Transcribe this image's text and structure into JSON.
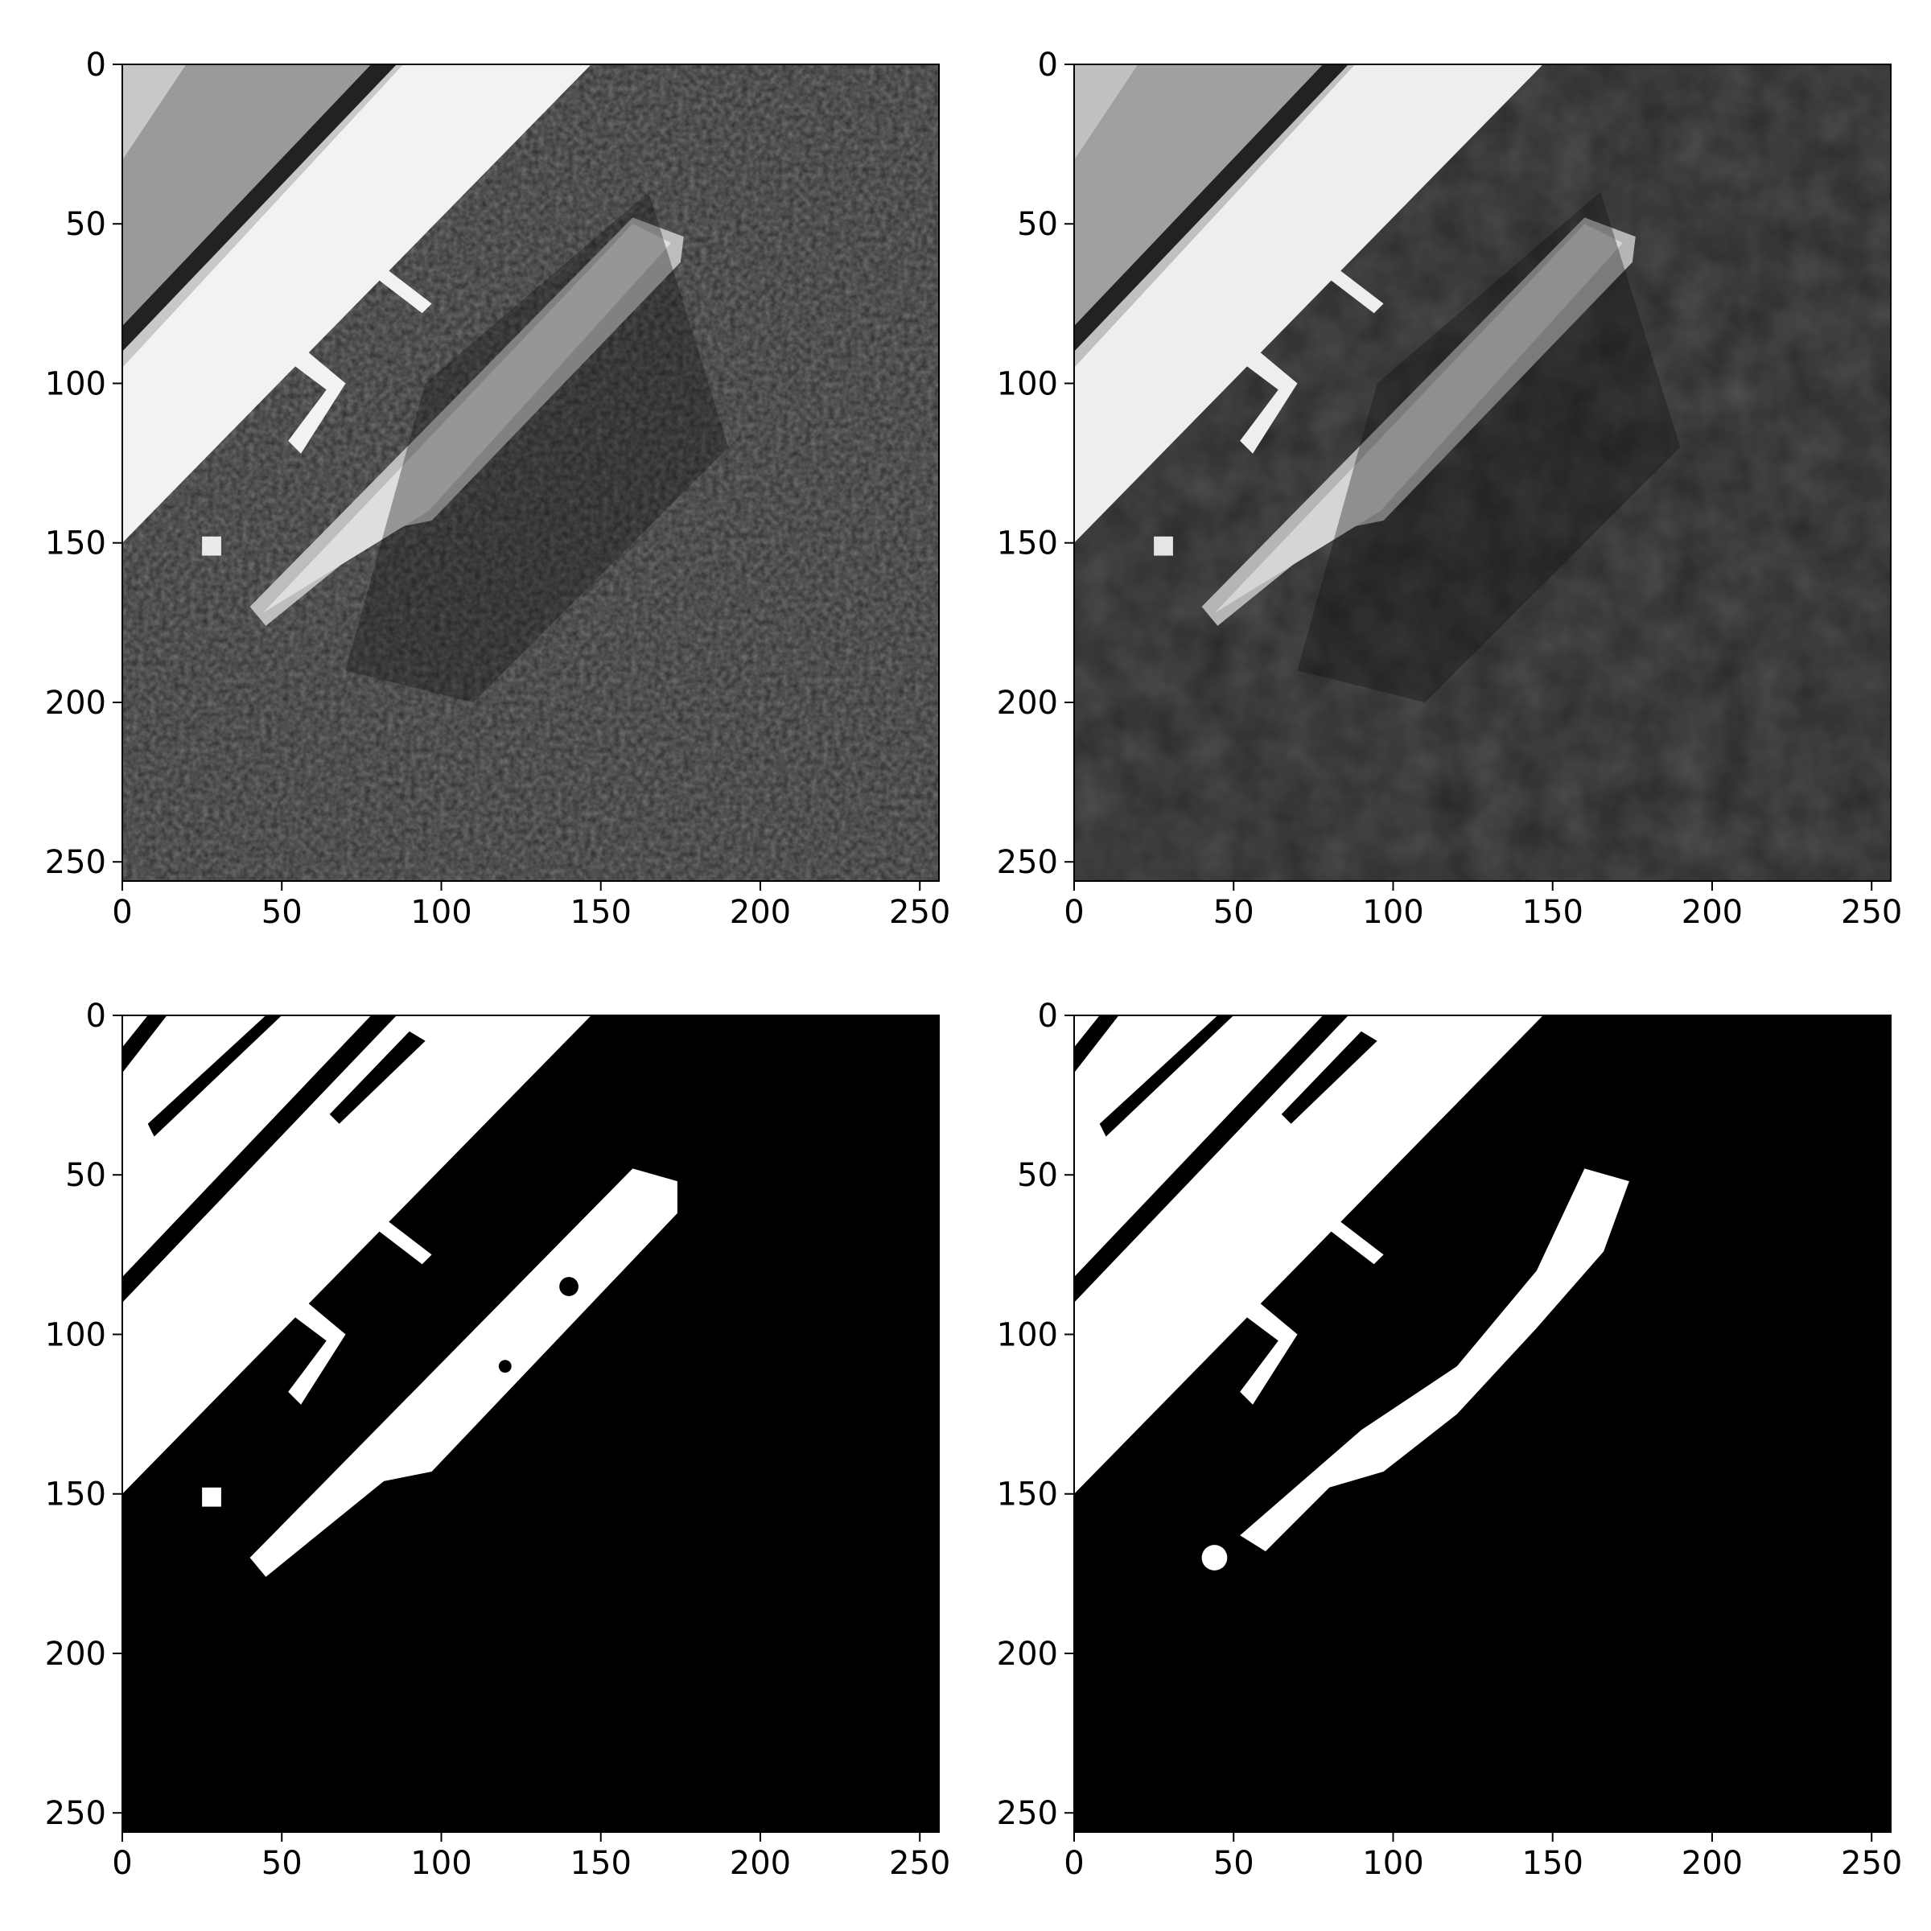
{
  "figure": {
    "panel_count": 4,
    "layout": "2x2 grid",
    "colormap": "gray",
    "background_color": "#ffffff",
    "axis_color": "#000000"
  },
  "chart_data": [
    {
      "type": "heatmap",
      "panel": "top-left",
      "image": "grayscale aerial view of harbor with docked ship (noisy original)",
      "xlim": [
        0,
        256
      ],
      "ylim": [
        256,
        0
      ],
      "xticks": [
        0,
        50,
        100,
        150,
        200,
        250
      ],
      "yticks": [
        0,
        50,
        100,
        150,
        200,
        250
      ],
      "title": "",
      "xlabel": "",
      "ylabel": ""
    },
    {
      "type": "heatmap",
      "panel": "top-right",
      "image": "grayscale aerial view of harbor with docked ship (smoothed)",
      "xlim": [
        0,
        256
      ],
      "ylim": [
        256,
        0
      ],
      "xticks": [
        0,
        50,
        100,
        150,
        200,
        250
      ],
      "yticks": [
        0,
        50,
        100,
        150,
        200,
        250
      ],
      "title": "",
      "xlabel": "",
      "ylabel": ""
    },
    {
      "type": "heatmap",
      "panel": "bottom-left",
      "image": "binary mask of pier and ship (noisy threshold)",
      "xlim": [
        0,
        256
      ],
      "ylim": [
        256,
        0
      ],
      "xticks": [
        0,
        50,
        100,
        150,
        200,
        250
      ],
      "yticks": [
        0,
        50,
        100,
        150,
        200,
        250
      ],
      "title": "",
      "xlabel": "",
      "ylabel": ""
    },
    {
      "type": "heatmap",
      "panel": "bottom-right",
      "image": "binary mask of pier and ship (cleaned threshold)",
      "xlim": [
        0,
        256
      ],
      "ylim": [
        256,
        0
      ],
      "xticks": [
        0,
        50,
        100,
        150,
        200,
        250
      ],
      "yticks": [
        0,
        50,
        100,
        150,
        200,
        250
      ],
      "title": "",
      "xlabel": "",
      "ylabel": ""
    }
  ]
}
